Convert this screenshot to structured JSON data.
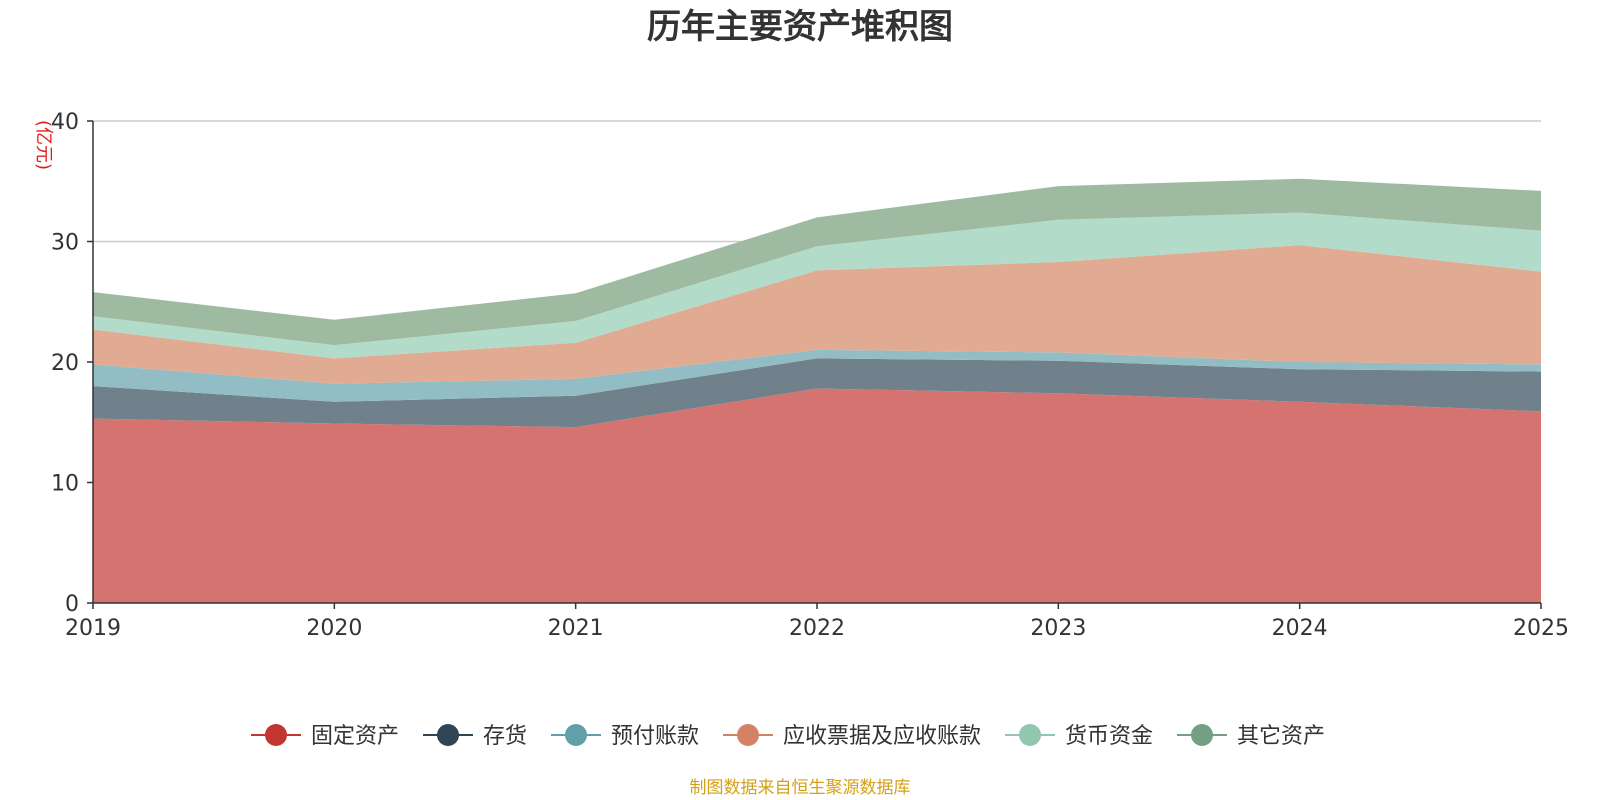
{
  "chart_data": {
    "type": "area",
    "stacked": true,
    "title": "历年主要资产堆积图",
    "unit_label": "(亿元)",
    "xlabel": "",
    "ylabel": "(亿元)",
    "x": [
      "2019",
      "2020",
      "2021",
      "2022",
      "2023",
      "2024",
      "2025"
    ],
    "ylim": [
      0,
      40
    ],
    "yticks": [
      0,
      10,
      20,
      30,
      40
    ],
    "grid": true,
    "legend_position": "bottom",
    "series": [
      {
        "name": "固定资产",
        "color": "#c23531",
        "fill": "#d4706d",
        "values": [
          15.3,
          14.9,
          14.6,
          17.8,
          17.4,
          16.7,
          15.9
        ]
      },
      {
        "name": "存货",
        "color": "#2f4554",
        "fill": "#6e7e89",
        "values": [
          2.7,
          1.8,
          2.6,
          2.5,
          2.7,
          2.7,
          3.3
        ]
      },
      {
        "name": "预付账款",
        "color": "#61a0a8",
        "fill": "#91bcc3",
        "values": [
          1.8,
          1.5,
          1.4,
          0.7,
          0.7,
          0.6,
          0.6
        ]
      },
      {
        "name": "应收票据及应收账款",
        "color": "#d48265",
        "fill": "#e0a891",
        "values": [
          2.9,
          2.1,
          3.0,
          6.6,
          7.5,
          9.7,
          7.7
        ]
      },
      {
        "name": "货币资金",
        "color": "#91c7ae",
        "fill": "#b0dbc8",
        "values": [
          1.1,
          1.1,
          1.8,
          2.0,
          3.5,
          2.7,
          3.4
        ]
      },
      {
        "name": "其它资产",
        "color": "#749f83",
        "fill": "#9cba9f",
        "values": [
          2.0,
          2.1,
          2.3,
          2.4,
          2.8,
          2.8,
          3.3
        ]
      }
    ],
    "source_note": "制图数据来自恒生聚源数据库"
  }
}
